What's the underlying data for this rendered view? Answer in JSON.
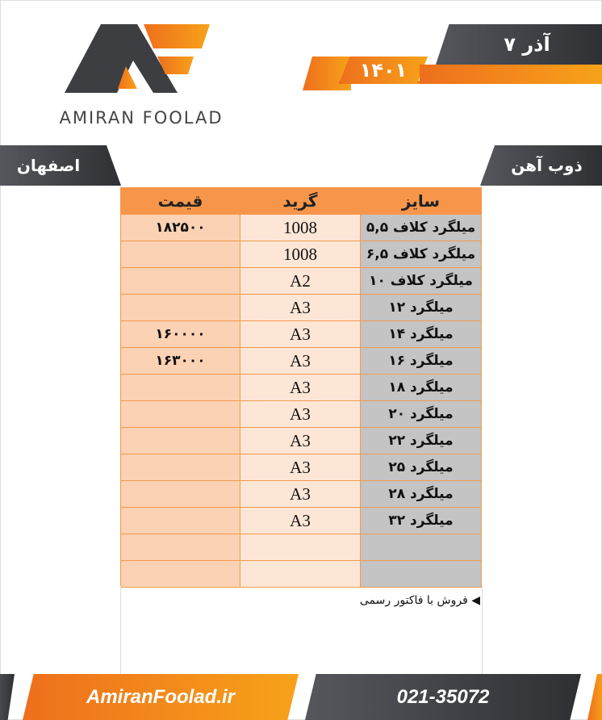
{
  "logo": {
    "text": "AMIRAN FOOLAD"
  },
  "date": {
    "day_month": "۷ آذر",
    "year": "۱۴۰۱"
  },
  "category": "ذوب آهن",
  "city": "اصفهان",
  "table": {
    "headers": {
      "size": "سایز",
      "grade": "گرید",
      "price": "قیمت"
    },
    "rows": [
      {
        "size": "میلگرد کلاف ۵,۵",
        "grade": "1008",
        "price": "۱۸۲۵۰۰"
      },
      {
        "size": "میلگرد کلاف ۶,۵",
        "grade": "1008",
        "price": ""
      },
      {
        "size": "میلگرد کلاف ۱۰",
        "grade": "A2",
        "price": ""
      },
      {
        "size": "میلگرد ۱۲",
        "grade": "A3",
        "price": ""
      },
      {
        "size": "میلگرد ۱۴",
        "grade": "A3",
        "price": "۱۶۰۰۰۰"
      },
      {
        "size": "میلگرد ۱۶",
        "grade": "A3",
        "price": "۱۶۳۰۰۰"
      },
      {
        "size": "میلگرد ۱۸",
        "grade": "A3",
        "price": ""
      },
      {
        "size": "میلگرد ۲۰",
        "grade": "A3",
        "price": ""
      },
      {
        "size": "میلگرد ۲۲",
        "grade": "A3",
        "price": ""
      },
      {
        "size": "میلگرد ۲۵",
        "grade": "A3",
        "price": ""
      },
      {
        "size": "میلگرد ۲۸",
        "grade": "A3",
        "price": ""
      },
      {
        "size": "میلگرد ۳۲",
        "grade": "A3",
        "price": ""
      },
      {
        "size": "",
        "grade": "",
        "price": ""
      },
      {
        "size": "",
        "grade": "",
        "price": ""
      }
    ]
  },
  "note": "فروش با فاکتور رسمی",
  "footer": {
    "website": "AmiranFoolad.ir",
    "phone": "021-35072"
  },
  "colors": {
    "orange": "#f7964a",
    "dark": "#3a3b3f",
    "grey_cell": "#c4c4c4"
  }
}
